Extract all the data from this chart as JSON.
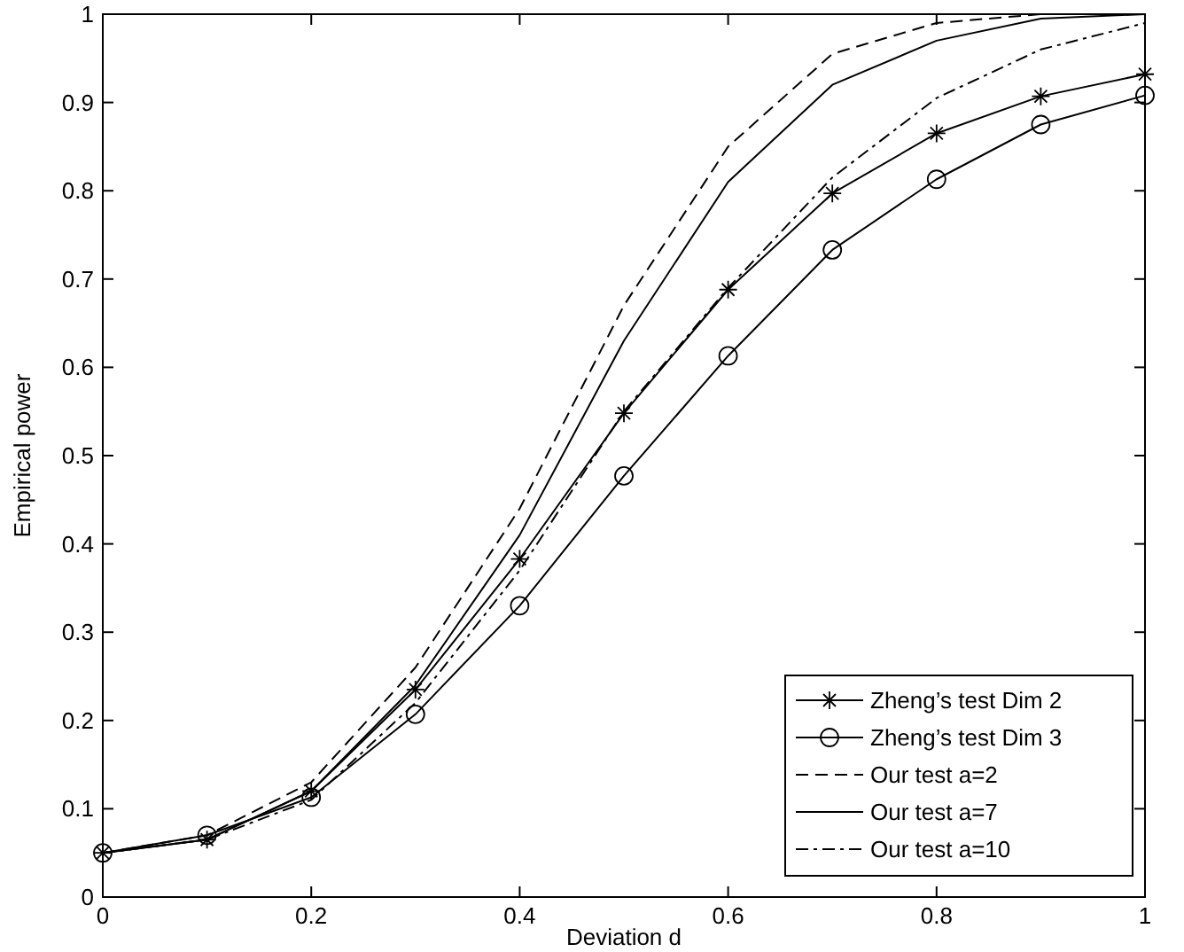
{
  "chart_data": {
    "type": "line",
    "xlabel": "Deviation d",
    "ylabel": "Empirical power",
    "x": [
      0,
      0.1,
      0.2,
      0.3,
      0.4,
      0.5,
      0.6,
      0.7,
      0.8,
      0.9,
      1
    ],
    "xlim": [
      0,
      1
    ],
    "xticks": [
      0,
      0.2,
      0.4,
      0.6,
      0.8,
      1
    ],
    "ylim": [
      0,
      1
    ],
    "yticks": [
      0,
      0.1,
      0.2,
      0.3,
      0.4,
      0.5,
      0.6,
      0.7,
      0.8,
      0.9,
      1
    ],
    "grid": false,
    "legend": "bottom right",
    "series": [
      {
        "name": "Zheng’s test Dim 2",
        "color": "#000000",
        "marker": "cross",
        "line_style": "solid",
        "values": [
          0.05,
          0.065,
          0.12,
          0.235,
          0.383,
          0.548,
          0.688,
          0.797,
          0.865,
          0.907,
          0.932
        ]
      },
      {
        "name": "Zheng’s test Dim 3",
        "color": "#000000",
        "marker": "circle",
        "line_style": "solid",
        "values": [
          0.05,
          0.07,
          0.113,
          0.207,
          0.33,
          0.477,
          0.613,
          0.733,
          0.813,
          0.875,
          0.908
        ]
      },
      {
        "name": "Our test a=2",
        "color": "#000000",
        "marker": "none",
        "line_style": "dashed",
        "values": [
          0.05,
          0.07,
          0.13,
          0.26,
          0.44,
          0.67,
          0.85,
          0.955,
          0.99,
          1.0,
          1.0
        ]
      },
      {
        "name": "Our test a=7",
        "color": "#000000",
        "marker": "none",
        "line_style": "solid",
        "values": [
          0.05,
          0.065,
          0.12,
          0.24,
          0.41,
          0.63,
          0.81,
          0.92,
          0.97,
          0.995,
          1.0
        ]
      },
      {
        "name": "Our test a=10",
        "color": "#000000",
        "marker": "none",
        "line_style": "dashdot",
        "values": [
          0.05,
          0.065,
          0.11,
          0.22,
          0.37,
          0.55,
          0.69,
          0.815,
          0.905,
          0.96,
          0.99
        ]
      }
    ]
  }
}
